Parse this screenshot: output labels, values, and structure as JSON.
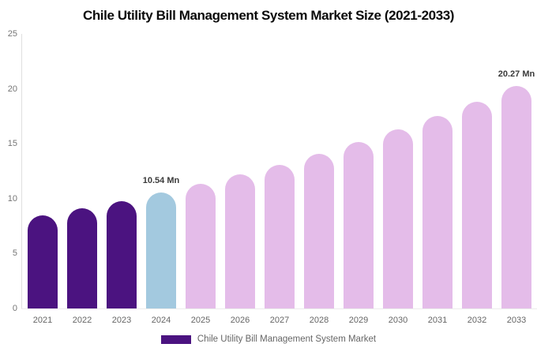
{
  "chart_data": {
    "type": "bar",
    "title": "Chile Utility Bill Management System Market Size (2021-2033)",
    "xlabel": "",
    "ylabel": "",
    "ylim": [
      0,
      25
    ],
    "yticks": [
      0,
      5,
      10,
      15,
      20,
      25
    ],
    "grid": false,
    "unit": "Mn",
    "categories": [
      "2021",
      "2022",
      "2023",
      "2024",
      "2025",
      "2026",
      "2027",
      "2028",
      "2029",
      "2030",
      "2031",
      "2032",
      "2033"
    ],
    "values": [
      8.47,
      9.11,
      9.8,
      10.54,
      11.33,
      12.19,
      13.11,
      14.1,
      15.16,
      16.3,
      17.53,
      18.85,
      20.27
    ],
    "bar_colors": [
      "#4B1380",
      "#4B1380",
      "#4B1380",
      "#A3C9DF",
      "#E4BCE9",
      "#E4BCE9",
      "#E4BCE9",
      "#E4BCE9",
      "#E4BCE9",
      "#E4BCE9",
      "#E4BCE9",
      "#E4BCE9",
      "#E4BCE9"
    ],
    "annotations": [
      {
        "category": "2024",
        "text": "10.54 Mn"
      },
      {
        "category": "2033",
        "text": "20.27 Mn"
      }
    ],
    "legend": {
      "label": "Chile Utility Bill Management System Market",
      "swatch_color": "#4B1380",
      "position": "bottom"
    },
    "colors": {
      "historical_bar": "#4B1380",
      "base_year_bar": "#A3C9DF",
      "forecast_bar": "#E4BCE9",
      "axis_line": "#e0e0e0",
      "tick_label": "#757575",
      "annotation_text": "#3a3a3a"
    }
  }
}
